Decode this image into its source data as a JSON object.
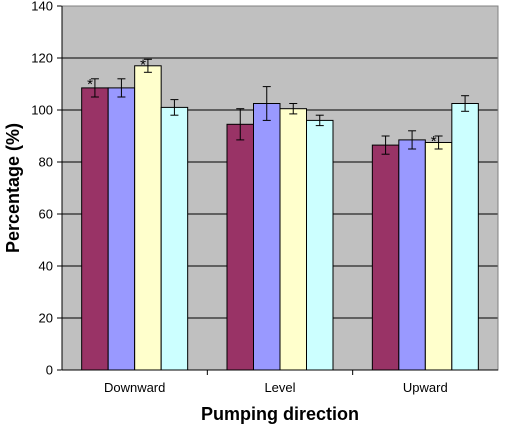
{
  "chart_data": {
    "type": "bar",
    "title": "",
    "xlabel": "Pumping direction",
    "ylabel": "Percentage (%)",
    "ylim": [
      0,
      140
    ],
    "yticks": [
      0,
      20,
      40,
      60,
      80,
      100,
      120,
      140
    ],
    "grid": true,
    "legend": "none",
    "categories": [
      "Downward",
      "Level",
      "Upward"
    ],
    "series": [
      {
        "color": "#993366",
        "values": [
          108.5,
          94.5,
          86.5
        ],
        "errors": [
          3.5,
          6.0,
          3.5
        ]
      },
      {
        "color": "#9999ff",
        "values": [
          108.5,
          102.5,
          88.5
        ],
        "errors": [
          3.5,
          6.5,
          3.5
        ]
      },
      {
        "color": "#ffffcc",
        "values": [
          117.0,
          100.5,
          87.5
        ],
        "errors": [
          2.5,
          2.0,
          2.5
        ]
      },
      {
        "color": "#ccffff",
        "values": [
          101.0,
          96.0,
          102.5
        ],
        "errors": [
          3.0,
          2.0,
          3.0
        ]
      }
    ],
    "annotations": [
      {
        "text": "*",
        "category": "Downward",
        "series_index": 0
      },
      {
        "text": "*",
        "category": "Downward",
        "series_index": 2
      },
      {
        "text": "*",
        "category": "Upward",
        "series_index": 2
      }
    ],
    "colors": {
      "plot_background": "#c0c0c0",
      "gridline": "#000000"
    }
  }
}
